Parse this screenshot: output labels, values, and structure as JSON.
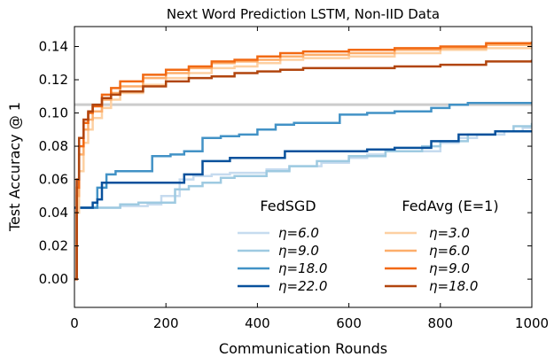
{
  "chart_data": {
    "type": "line",
    "title": "Next Word Prediction LSTM, Non-IID Data",
    "xlabel": "Communication Rounds",
    "ylabel": "Test Accuracy @ 1",
    "xlim": [
      0,
      1000
    ],
    "ylim": [
      -0.017,
      0.152
    ],
    "xticks": [
      "0",
      "200",
      "400",
      "600",
      "800",
      "1000"
    ],
    "yticks": [
      "0.00",
      "0.02",
      "0.04",
      "0.06",
      "0.08",
      "0.10",
      "0.12",
      "0.14"
    ],
    "grid": false,
    "target_line": {
      "y": 0.105,
      "color": "#cccccc"
    },
    "legend_groups": [
      {
        "title": "FedSGD",
        "series": [
          {
            "name": "η=6.0",
            "color": "#c6dbef",
            "x": [
              0,
              10,
              30,
              60,
              100,
              160,
              190,
              230,
              260,
              300,
              340,
              420,
              470,
              540,
              600,
              640,
              680,
              800,
              840,
              880,
              940,
              980,
              1000
            ],
            "y": [
              0.043,
              0.043,
              0.043,
              0.043,
              0.044,
              0.045,
              0.05,
              0.06,
              0.062,
              0.063,
              0.064,
              0.066,
              0.068,
              0.07,
              0.073,
              0.075,
              0.077,
              0.082,
              0.085,
              0.087,
              0.089,
              0.091,
              0.092
            ]
          },
          {
            "name": "η=9.0",
            "color": "#9ecae1",
            "x": [
              0,
              10,
              60,
              100,
              140,
              180,
              220,
              250,
              280,
              320,
              350,
              380,
              420,
              470,
              530,
              600,
              680,
              760,
              800,
              860,
              920,
              960,
              1000
            ],
            "y": [
              0.043,
              0.043,
              0.043,
              0.045,
              0.046,
              0.046,
              0.054,
              0.056,
              0.058,
              0.061,
              0.062,
              0.062,
              0.065,
              0.068,
              0.071,
              0.074,
              0.077,
              0.08,
              0.083,
              0.087,
              0.089,
              0.092,
              0.094
            ]
          },
          {
            "name": "η=18.0",
            "color": "#4292c6",
            "x": [
              0,
              10,
              30,
              50,
              70,
              90,
              130,
              170,
              210,
              240,
              280,
              320,
              360,
              400,
              440,
              480,
              520,
              580,
              640,
              700,
              780,
              820,
              860,
              1000
            ],
            "y": [
              0.043,
              0.043,
              0.043,
              0.055,
              0.063,
              0.065,
              0.065,
              0.074,
              0.075,
              0.077,
              0.085,
              0.086,
              0.087,
              0.09,
              0.093,
              0.094,
              0.094,
              0.099,
              0.1,
              0.101,
              0.103,
              0.105,
              0.106,
              0.106
            ]
          },
          {
            "name": "η=22.0",
            "color": "#08519c",
            "x": [
              0,
              10,
              30,
              40,
              50,
              60,
              80,
              100,
              160,
              200,
              240,
              280,
              340,
              400,
              460,
              520,
              580,
              640,
              700,
              780,
              840,
              920,
              1000
            ],
            "y": [
              0.043,
              0.043,
              0.043,
              0.046,
              0.048,
              0.058,
              0.058,
              0.058,
              0.058,
              0.058,
              0.063,
              0.071,
              0.073,
              0.073,
              0.077,
              0.077,
              0.077,
              0.078,
              0.079,
              0.083,
              0.087,
              0.089,
              0.089
            ]
          }
        ]
      },
      {
        "title": "FedAvg (E=1)",
        "series": [
          {
            "name": "η=3.0",
            "color": "#fdd0a2",
            "x": [
              0,
              5,
              10,
              20,
              30,
              40,
              60,
              80,
              100,
              150,
              200,
              250,
              300,
              350,
              400,
              450,
              500,
              600,
              700,
              800,
              900,
              1000
            ],
            "y": [
              0.0,
              0.04,
              0.065,
              0.082,
              0.09,
              0.097,
              0.103,
              0.108,
              0.112,
              0.117,
              0.121,
              0.124,
              0.127,
              0.128,
              0.13,
              0.132,
              0.133,
              0.134,
              0.136,
              0.138,
              0.139,
              0.14
            ]
          },
          {
            "name": "η=6.0",
            "color": "#fdae6b",
            "x": [
              0,
              5,
              10,
              20,
              30,
              40,
              60,
              80,
              100,
              150,
              200,
              250,
              300,
              350,
              400,
              450,
              500,
              600,
              700,
              800,
              900,
              1000
            ],
            "y": [
              0.0,
              0.05,
              0.075,
              0.09,
              0.096,
              0.101,
              0.108,
              0.112,
              0.116,
              0.121,
              0.124,
              0.127,
              0.13,
              0.131,
              0.132,
              0.134,
              0.135,
              0.136,
              0.138,
              0.139,
              0.141,
              0.142
            ]
          },
          {
            "name": "η=9.0",
            "color": "#f16913",
            "x": [
              0,
              5,
              10,
              20,
              30,
              40,
              60,
              80,
              100,
              150,
              200,
              250,
              300,
              350,
              400,
              450,
              500,
              600,
              700,
              800,
              900,
              1000
            ],
            "y": [
              0.0,
              0.055,
              0.08,
              0.094,
              0.1,
              0.104,
              0.111,
              0.115,
              0.119,
              0.123,
              0.126,
              0.128,
              0.131,
              0.132,
              0.134,
              0.136,
              0.137,
              0.138,
              0.139,
              0.14,
              0.142,
              0.143
            ]
          },
          {
            "name": "η=18.0",
            "color": "#b1450e",
            "x": [
              0,
              5,
              10,
              20,
              30,
              40,
              60,
              80,
              100,
              150,
              200,
              250,
              300,
              350,
              400,
              450,
              500,
              600,
              700,
              800,
              900,
              1000
            ],
            "y": [
              0.0,
              0.06,
              0.085,
              0.096,
              0.101,
              0.105,
              0.109,
              0.111,
              0.113,
              0.116,
              0.119,
              0.121,
              0.122,
              0.124,
              0.125,
              0.126,
              0.127,
              0.127,
              0.128,
              0.129,
              0.131,
              0.132
            ]
          }
        ]
      }
    ]
  }
}
